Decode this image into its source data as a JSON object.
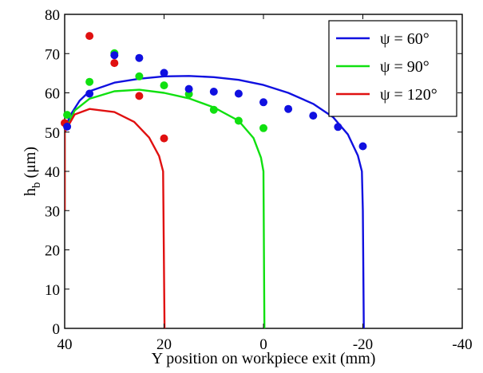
{
  "chart_data": {
    "type": "line",
    "title": "",
    "xlabel": "Y position on workpiece exit (mm)",
    "ylabel_main": "h",
    "ylabel_sub": "b",
    "ylabel_unit": " (μm)",
    "xlim": [
      40,
      -40
    ],
    "ylim": [
      0,
      80
    ],
    "x_ticks": [
      40,
      20,
      0,
      -20,
      -40
    ],
    "y_ticks": [
      0,
      10,
      20,
      30,
      40,
      50,
      60,
      70,
      80
    ],
    "grid": false,
    "legend_position": "top-right",
    "series": [
      {
        "name": "ψ = 60°",
        "color": "#1010e0",
        "line": [
          [
            40,
            30
          ],
          [
            40,
            50
          ],
          [
            39,
            54
          ],
          [
            37,
            58
          ],
          [
            35,
            60.4
          ],
          [
            30,
            62.6
          ],
          [
            25,
            63.6
          ],
          [
            20,
            64.2
          ],
          [
            15,
            64.3
          ],
          [
            10,
            64.0
          ],
          [
            5,
            63.3
          ],
          [
            0,
            62.0
          ],
          [
            -5,
            60.0
          ],
          [
            -10,
            57.2
          ],
          [
            -14,
            53.8
          ],
          [
            -17,
            49.4
          ],
          [
            -19,
            44.0
          ],
          [
            -19.8,
            40
          ],
          [
            -20,
            30
          ],
          [
            -20.2,
            0
          ]
        ],
        "points": [
          [
            39.5,
            51.4
          ],
          [
            35,
            59.8
          ],
          [
            30,
            69.6
          ],
          [
            25,
            68.9
          ],
          [
            20,
            65.1
          ],
          [
            15,
            61.0
          ],
          [
            10,
            60.3
          ],
          [
            5,
            59.8
          ],
          [
            0,
            57.6
          ],
          [
            -5,
            55.9
          ],
          [
            -10,
            54.2
          ],
          [
            -15,
            51.3
          ],
          [
            -20,
            46.4
          ]
        ]
      },
      {
        "name": "ψ = 90°",
        "color": "#10e010",
        "line": [
          [
            40,
            30
          ],
          [
            40,
            50
          ],
          [
            38,
            55.5
          ],
          [
            35,
            58.5
          ],
          [
            30,
            60.4
          ],
          [
            25,
            60.8
          ],
          [
            20,
            60.0
          ],
          [
            15,
            58.6
          ],
          [
            10,
            56.3
          ],
          [
            5,
            52.9
          ],
          [
            2,
            48.5
          ],
          [
            0.5,
            43.5
          ],
          [
            0,
            40
          ],
          [
            -0.2,
            0
          ]
        ],
        "points": [
          [
            39.5,
            54.4
          ],
          [
            35,
            62.8
          ],
          [
            30,
            70.1
          ],
          [
            25,
            64.2
          ],
          [
            20,
            61.9
          ],
          [
            15,
            59.7
          ],
          [
            10,
            55.7
          ],
          [
            5,
            52.9
          ],
          [
            0,
            51.0
          ]
        ]
      },
      {
        "name": "ψ = 120°",
        "color": "#e01010",
        "line": [
          [
            40,
            30
          ],
          [
            40,
            50
          ],
          [
            38,
            54.5
          ],
          [
            35,
            55.9
          ],
          [
            30,
            55.1
          ],
          [
            26,
            52.6
          ],
          [
            23,
            48.6
          ],
          [
            21,
            43.9
          ],
          [
            20.2,
            40
          ],
          [
            19.9,
            0
          ]
        ],
        "points": [
          [
            40,
            52.3
          ],
          [
            35,
            74.5
          ],
          [
            30,
            67.6
          ],
          [
            25,
            59.2
          ],
          [
            20,
            48.4
          ]
        ]
      }
    ]
  }
}
